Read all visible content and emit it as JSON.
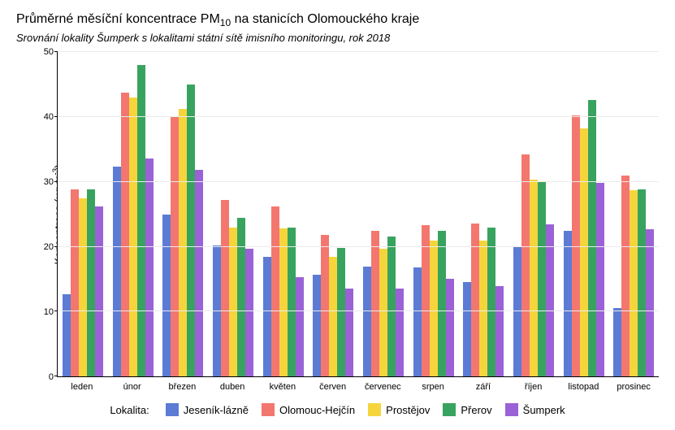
{
  "title": {
    "prefix": "Průměrné měsíční koncentrace PM",
    "sub": "10",
    "suffix": " na stanicích Olomouckého kraje",
    "fontsize": 16
  },
  "subtitle": "Srovnání lokality Šumperk s lokalitami státní sítě imisního monitoringu, rok 2018",
  "ylabel": {
    "prefix": "Koncentrace (µg.m",
    "sup": "-3",
    "suffix": ")",
    "fontsize": 13
  },
  "chart": {
    "type": "bar",
    "ylim": [
      0,
      50
    ],
    "ytick_step": 10,
    "yticks": [
      0,
      10,
      20,
      30,
      40,
      50
    ],
    "background_color": "#ffffff",
    "grid_color": "#ebebeb",
    "axis_color": "#000000",
    "bar_group_gap": 10,
    "categories": [
      "leden",
      "únor",
      "březen",
      "duben",
      "květen",
      "červen",
      "červenec",
      "srpen",
      "září",
      "říjen",
      "listopad",
      "prosinec"
    ],
    "series": [
      {
        "name": "Jeseník-lázně",
        "color": "#5b7bd5",
        "values": [
          12.7,
          32.3,
          25.0,
          20.2,
          18.5,
          15.7,
          17.0,
          16.8,
          14.6,
          20.0,
          22.5,
          10.6
        ]
      },
      {
        "name": "Olomouc-Hejčín",
        "color": "#f3776f",
        "values": [
          28.8,
          43.8,
          40.0,
          27.2,
          26.2,
          21.8,
          22.5,
          23.3,
          23.6,
          34.2,
          40.2,
          31.0
        ]
      },
      {
        "name": "Prostějov",
        "color": "#f5d53b",
        "values": [
          27.5,
          43.0,
          41.3,
          23.0,
          22.8,
          18.4,
          19.7,
          21.0,
          20.9,
          30.4,
          38.2,
          28.7
        ]
      },
      {
        "name": "Přerov",
        "color": "#38a35f",
        "values": [
          28.9,
          48.0,
          45.0,
          24.4,
          23.0,
          19.8,
          21.6,
          22.4,
          23.0,
          30.1,
          42.6,
          28.9
        ]
      },
      {
        "name": "Šumperk",
        "color": "#9a62d6",
        "values": [
          26.2,
          33.6,
          31.9,
          19.7,
          15.3,
          13.6,
          13.6,
          15.1,
          13.9,
          23.4,
          29.8,
          22.7
        ]
      }
    ]
  },
  "legend": {
    "title": "Lokalita:",
    "fontsize": 13
  },
  "label_fontsize": 11
}
